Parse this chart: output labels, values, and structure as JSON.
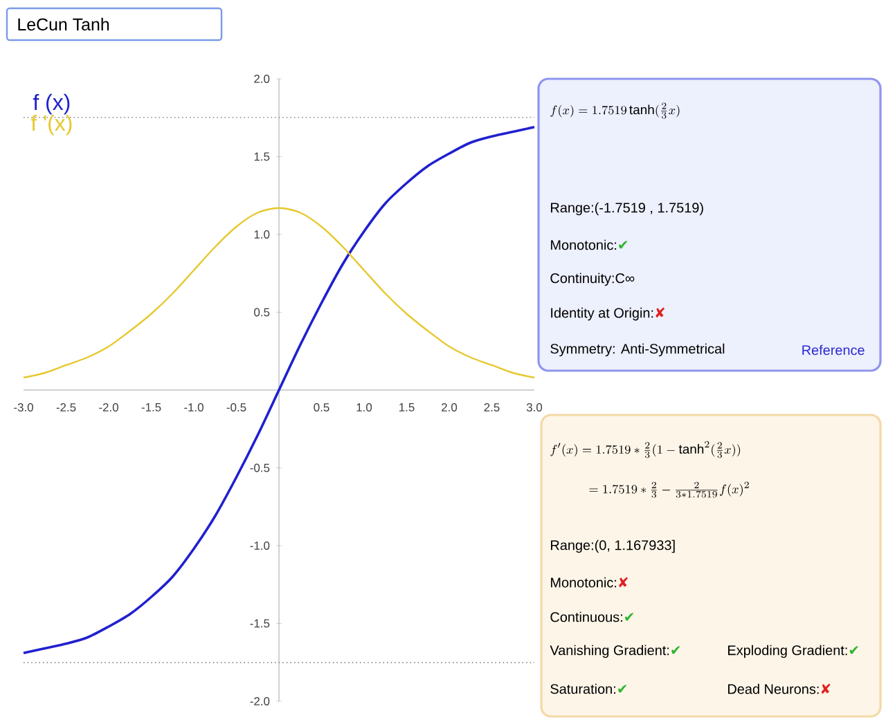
{
  "chart_data": {
    "type": "line",
    "x": [
      -3,
      -2.75,
      -2.5,
      -2.25,
      -2,
      -1.75,
      -1.5,
      -1.25,
      -1,
      -0.75,
      -0.5,
      -0.25,
      0,
      0.25,
      0.5,
      0.75,
      1,
      1.25,
      1.5,
      1.75,
      2,
      2.25,
      2.5,
      2.75,
      3
    ],
    "series": [
      {
        "name": "f (x)",
        "color": "#2020d0",
        "values": [
          -1.69,
          -1.66,
          -1.63,
          -1.59,
          -1.52,
          -1.44,
          -1.33,
          -1.2,
          -1.02,
          -0.81,
          -0.56,
          -0.29,
          0,
          0.29,
          0.56,
          0.81,
          1.02,
          1.2,
          1.33,
          1.44,
          1.52,
          1.59,
          1.63,
          1.66,
          1.69
        ]
      },
      {
        "name": "f '(x)",
        "color": "#e6c82e",
        "values": [
          0.08,
          0.11,
          0.16,
          0.21,
          0.28,
          0.38,
          0.49,
          0.62,
          0.77,
          0.92,
          1.05,
          1.14,
          1.17,
          1.14,
          1.05,
          0.92,
          0.77,
          0.62,
          0.49,
          0.38,
          0.28,
          0.21,
          0.16,
          0.11,
          0.08
        ]
      }
    ],
    "xlim": [
      -3,
      3
    ],
    "ylim": [
      -2,
      2
    ],
    "xticks": [
      {
        "value": -3,
        "label": "-3.0"
      },
      {
        "value": -2.5,
        "label": "-2.5"
      },
      {
        "value": -2,
        "label": "-2.0"
      },
      {
        "value": -1.5,
        "label": "-1.5"
      },
      {
        "value": -1,
        "label": "-1.0"
      },
      {
        "value": -0.5,
        "label": "-0.5"
      },
      {
        "value": 0.5,
        "label": "0.5"
      },
      {
        "value": 1,
        "label": "1.0"
      },
      {
        "value": 1.5,
        "label": "1.5"
      },
      {
        "value": 2,
        "label": "2.0"
      },
      {
        "value": 2.5,
        "label": "2.5"
      },
      {
        "value": 3,
        "label": "3.0"
      }
    ],
    "yticks": [
      {
        "value": -2,
        "label": "-2.0"
      },
      {
        "value": -1.5,
        "label": "-1.5"
      },
      {
        "value": -1,
        "label": "-1.0"
      },
      {
        "value": -0.5,
        "label": "-0.5"
      },
      {
        "value": 0.5,
        "label": "0.5"
      },
      {
        "value": 1,
        "label": "1.0"
      },
      {
        "value": 1.5,
        "label": "1.5"
      },
      {
        "value": 2,
        "label": "2.0"
      }
    ],
    "ref_lines": [
      {
        "axis": "y",
        "value": 1.7519,
        "color": "#888888",
        "line_style": "dotted"
      },
      {
        "axis": "y",
        "value": -1.7519,
        "color": "#888888",
        "line_style": "dotted"
      }
    ],
    "legend": "top left",
    "marker": "none",
    "line_style": "solid",
    "annotations": [
      "LeCun Tanh",
      "f(x) = 1.7519\\tanh(\\frac{2}{3}x)",
      "Range:(-1.7519 , 1.7519)",
      "Monotonic:✔",
      "Continuity:C∞",
      "Identity at Origin:✘",
      "Symmetry: Anti-Symmetrical",
      "Reference",
      "f'(x) = 1.7519 * \\frac{2}{3}(1-\\tanh^2(\\frac{2}{3}x))",
      "= 1.7519 * \\frac{2}{3} - \\frac{2}{3 * 1.7519}f(x)^2",
      "Range:(0, 1.167933]",
      "Monotonic:✘",
      "Continuous:✔",
      "Vanishing Gradient:✔",
      "Exploding Gradient:✔",
      "Saturation:✔",
      "Dead Neurons:✘"
    ]
  }
}
